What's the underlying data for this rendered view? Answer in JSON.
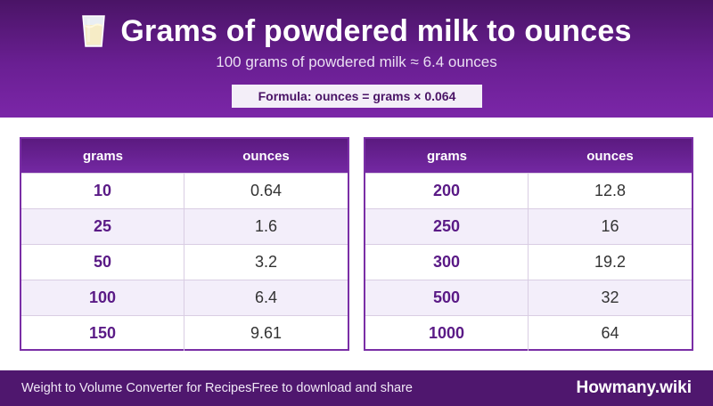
{
  "header": {
    "icon": "milk-glass-icon",
    "title": "Grams of powdered milk to ounces",
    "subtitle": "100 grams of powdered milk ≈ 6.4 ounces",
    "formula": "Formula: ounces = grams × 0.064"
  },
  "tables": [
    {
      "columns": [
        "grams",
        "ounces"
      ],
      "rows": [
        {
          "grams": "10",
          "ounces": "0.64"
        },
        {
          "grams": "25",
          "ounces": "1.6"
        },
        {
          "grams": "50",
          "ounces": "3.2"
        },
        {
          "grams": "100",
          "ounces": "6.4"
        },
        {
          "grams": "150",
          "ounces": "9.61"
        }
      ]
    },
    {
      "columns": [
        "grams",
        "ounces"
      ],
      "rows": [
        {
          "grams": "200",
          "ounces": "12.8"
        },
        {
          "grams": "250",
          "ounces": "16"
        },
        {
          "grams": "300",
          "ounces": "19.2"
        },
        {
          "grams": "500",
          "ounces": "32"
        },
        {
          "grams": "1000",
          "ounces": "64"
        }
      ]
    }
  ],
  "footer": {
    "left_text": "Weight to Volume Converter for Recipes",
    "left_note": "Free to download and share",
    "brand": "Howmany.wiki"
  },
  "colors": {
    "header_dark": "#4a1466",
    "header_light": "#7b26a8",
    "accent": "#5a1a86",
    "footer": "#4f176e"
  }
}
